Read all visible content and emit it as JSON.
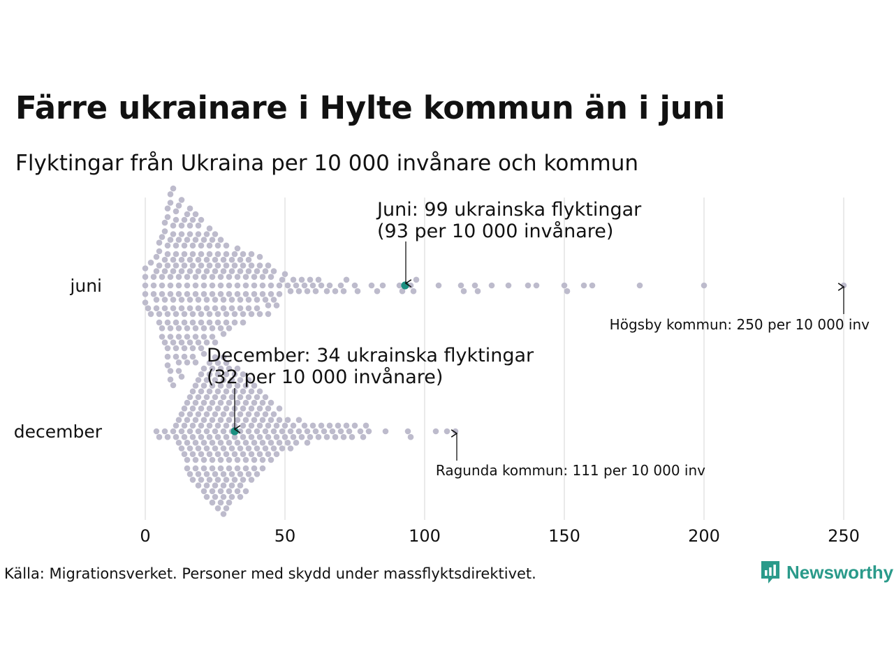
{
  "title": "Färre ukrainare i Hylte kommun än i juni",
  "subtitle": "Flyktingar från Ukraina per 10 000 invånare och kommun",
  "source": "Källa: Migrationsverket. Personer med skydd under massflyktsdirektivet.",
  "logo": {
    "text": "Newsworthy",
    "icon": "bar-chart-badge-icon"
  },
  "colors": {
    "dot": "#bdbbcc",
    "highlight": "#1a9081",
    "grid": "#d6d6d6",
    "text": "#111111"
  },
  "chart_data": {
    "type": "scatter",
    "subtype": "beeswarm",
    "xlim": [
      0,
      250
    ],
    "xticks": [
      0,
      50,
      100,
      150,
      200,
      250
    ],
    "xtick_labels": [
      "0",
      "50",
      "100",
      "150",
      "200",
      "250"
    ],
    "categories": [
      "juni",
      "december"
    ],
    "series": [
      {
        "name": "juni",
        "highlight": {
          "name": "Hylte kommun",
          "value": 93,
          "label_line1": "Juni: 99 ukrainska flyktingar",
          "label_line2": "(93 per 10 000 invånare)"
        },
        "max": {
          "value": 250,
          "label": "Högsby kommun: 250 per 10 000 inv"
        },
        "values": [
          0,
          0,
          0,
          0,
          0,
          1,
          2,
          2,
          3,
          3,
          3,
          4,
          4,
          4,
          4,
          5,
          5,
          5,
          5,
          5,
          6,
          6,
          6,
          6,
          6,
          6,
          7,
          7,
          7,
          7,
          7,
          7,
          7,
          8,
          8,
          8,
          8,
          8,
          8,
          8,
          8,
          8,
          8,
          9,
          9,
          9,
          9,
          9,
          9,
          9,
          9,
          9,
          9,
          10,
          10,
          10,
          10,
          10,
          10,
          10,
          10,
          10,
          11,
          11,
          11,
          11,
          11,
          11,
          11,
          11,
          11,
          12,
          12,
          12,
          12,
          12,
          12,
          12,
          12,
          12,
          13,
          13,
          13,
          13,
          13,
          13,
          13,
          13,
          13,
          14,
          14,
          14,
          14,
          14,
          14,
          14,
          14,
          15,
          15,
          15,
          15,
          15,
          15,
          15,
          15,
          16,
          16,
          16,
          16,
          16,
          16,
          16,
          16,
          17,
          17,
          17,
          17,
          17,
          17,
          17,
          17,
          18,
          18,
          18,
          18,
          18,
          18,
          18,
          18,
          19,
          19,
          19,
          19,
          19,
          19,
          19,
          20,
          20,
          20,
          20,
          20,
          20,
          20,
          21,
          21,
          21,
          21,
          21,
          21,
          21,
          22,
          22,
          22,
          22,
          22,
          22,
          23,
          23,
          23,
          23,
          23,
          23,
          24,
          24,
          24,
          24,
          24,
          24,
          25,
          25,
          25,
          25,
          25,
          25,
          26,
          26,
          26,
          26,
          26,
          27,
          27,
          27,
          27,
          27,
          28,
          28,
          28,
          28,
          28,
          29,
          29,
          29,
          29,
          29,
          30,
          30,
          30,
          30,
          31,
          31,
          31,
          31,
          32,
          32,
          32,
          32,
          33,
          33,
          33,
          33,
          34,
          34,
          34,
          34,
          35,
          35,
          35,
          35,
          36,
          36,
          36,
          37,
          37,
          37,
          37,
          38,
          38,
          38,
          39,
          39,
          39,
          40,
          40,
          40,
          41,
          41,
          41,
          42,
          42,
          42,
          43,
          43,
          44,
          44,
          44,
          45,
          45,
          45,
          46,
          46,
          47,
          48,
          48,
          49,
          50,
          51,
          52,
          53,
          54,
          55,
          56,
          57,
          58,
          59,
          60,
          61,
          62,
          63,
          65,
          66,
          68,
          70,
          71,
          72,
          75,
          76,
          81,
          83,
          85,
          91,
          92,
          95,
          96,
          97,
          105,
          113,
          114,
          118,
          119,
          124,
          130,
          137,
          140,
          150,
          151,
          157,
          160,
          177,
          200,
          250
        ]
      },
      {
        "name": "december",
        "highlight": {
          "name": "Hylte kommun",
          "value": 32,
          "label_line1": "December: 34 ukrainska flyktingar",
          "label_line2": "(32 per 10 000 invånare)"
        },
        "max": {
          "value": 111,
          "label": "Ragunda kommun: 111 per 10 000 inv"
        },
        "values": [
          4,
          5,
          7,
          8,
          10,
          11,
          11,
          12,
          12,
          13,
          13,
          13,
          14,
          14,
          14,
          14,
          15,
          15,
          15,
          15,
          15,
          16,
          16,
          16,
          16,
          16,
          17,
          17,
          17,
          17,
          17,
          17,
          18,
          18,
          18,
          18,
          18,
          18,
          19,
          19,
          19,
          19,
          19,
          19,
          19,
          20,
          20,
          20,
          20,
          20,
          20,
          20,
          21,
          21,
          21,
          21,
          21,
          21,
          21,
          21,
          22,
          22,
          22,
          22,
          22,
          22,
          22,
          22,
          23,
          23,
          23,
          23,
          23,
          23,
          23,
          23,
          24,
          24,
          24,
          24,
          24,
          24,
          24,
          24,
          24,
          25,
          25,
          25,
          25,
          25,
          25,
          25,
          25,
          25,
          26,
          26,
          26,
          26,
          26,
          26,
          26,
          26,
          26,
          27,
          27,
          27,
          27,
          27,
          27,
          27,
          27,
          27,
          28,
          28,
          28,
          28,
          28,
          28,
          28,
          28,
          28,
          28,
          29,
          29,
          29,
          29,
          29,
          29,
          29,
          29,
          29,
          30,
          30,
          30,
          30,
          30,
          30,
          30,
          30,
          30,
          31,
          31,
          31,
          31,
          31,
          31,
          31,
          31,
          32,
          32,
          32,
          32,
          32,
          32,
          32,
          33,
          33,
          33,
          33,
          33,
          33,
          33,
          33,
          34,
          34,
          34,
          34,
          34,
          34,
          34,
          34,
          35,
          35,
          35,
          35,
          35,
          35,
          35,
          36,
          36,
          36,
          36,
          36,
          36,
          36,
          37,
          37,
          37,
          37,
          37,
          37,
          38,
          38,
          38,
          38,
          38,
          38,
          39,
          39,
          39,
          39,
          39,
          39,
          40,
          40,
          40,
          40,
          40,
          41,
          41,
          41,
          41,
          41,
          42,
          42,
          42,
          42,
          42,
          43,
          43,
          43,
          43,
          44,
          44,
          44,
          44,
          45,
          45,
          45,
          45,
          46,
          46,
          46,
          47,
          47,
          47,
          48,
          48,
          48,
          49,
          49,
          50,
          50,
          51,
          51,
          52,
          52,
          53,
          53,
          54,
          55,
          55,
          56,
          57,
          58,
          58,
          59,
          60,
          61,
          62,
          63,
          64,
          65,
          66,
          67,
          68,
          69,
          70,
          71,
          72,
          73,
          74,
          75,
          77,
          78,
          79,
          80,
          86,
          94,
          95,
          104,
          108,
          111
        ]
      }
    ],
    "title": "Färre ukrainare i Hylte kommun än i juni",
    "xlabel": "",
    "ylabel": ""
  }
}
